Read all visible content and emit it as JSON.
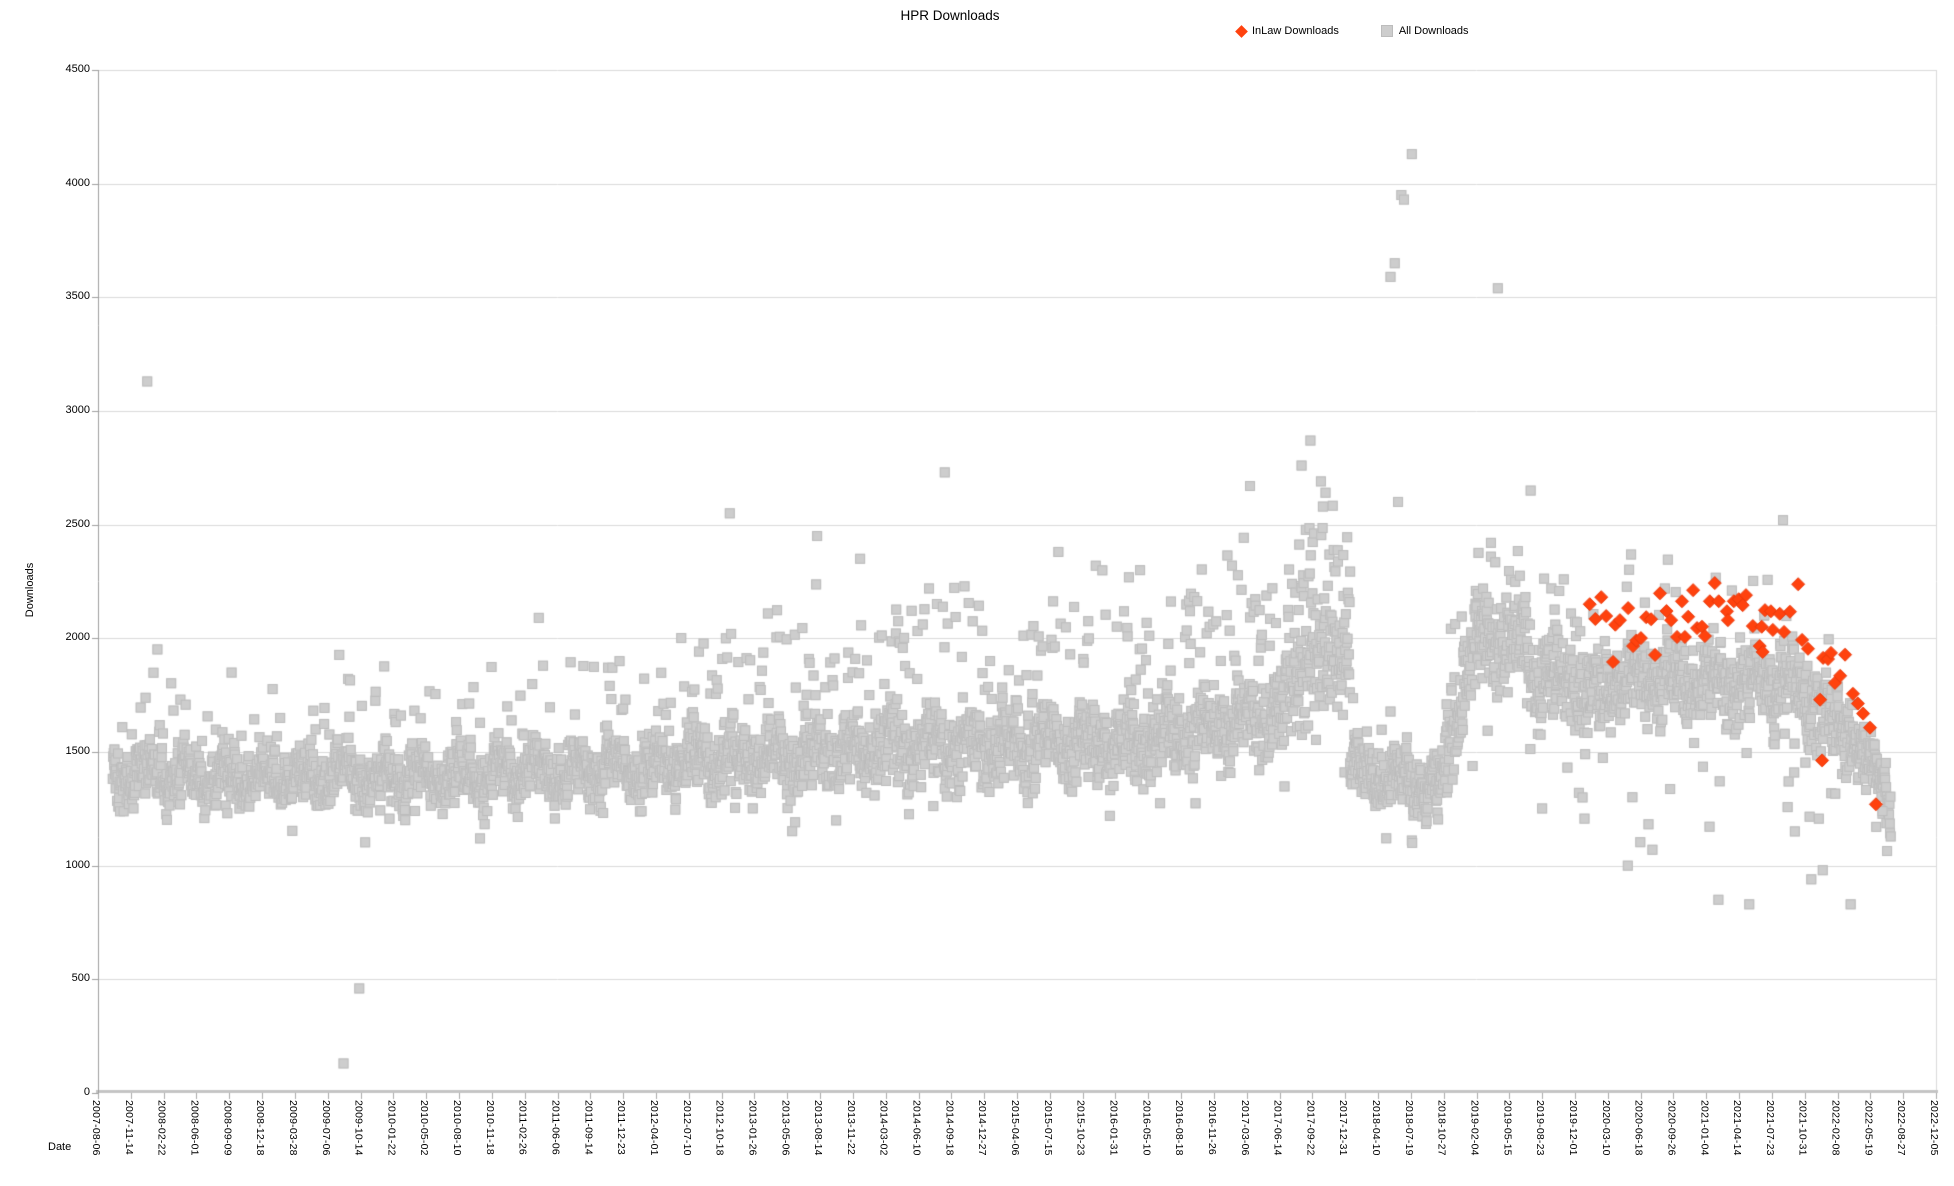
{
  "chart_data": {
    "type": "scatter",
    "title": "HPR Downloads",
    "xlabel": "Date",
    "ylabel": "Downloads",
    "ylim": [
      0,
      4500
    ],
    "yticks": [
      0,
      500,
      1000,
      1500,
      2000,
      2500,
      3000,
      3500,
      4000,
      4500
    ],
    "x_range": [
      "2007-08-06",
      "2022-12-05"
    ],
    "xticks": [
      "2007-08-06",
      "2007-11-14",
      "2008-02-22",
      "2008-06-01",
      "2008-09-09",
      "2008-12-18",
      "2009-03-28",
      "2009-07-06",
      "2009-10-14",
      "2010-01-22",
      "2010-05-02",
      "2010-08-10",
      "2010-11-18",
      "2011-02-26",
      "2011-06-06",
      "2011-09-14",
      "2011-12-23",
      "2012-04-01",
      "2012-07-10",
      "2012-10-18",
      "2013-01-26",
      "2013-05-06",
      "2013-08-14",
      "2013-11-22",
      "2014-03-02",
      "2014-06-10",
      "2014-09-18",
      "2014-12-27",
      "2015-04-06",
      "2015-07-15",
      "2015-10-23",
      "2016-01-31",
      "2016-05-10",
      "2016-08-18",
      "2016-11-26",
      "2017-03-06",
      "2017-06-14",
      "2017-09-22",
      "2017-12-31",
      "2018-04-10",
      "2018-07-19",
      "2018-10-27",
      "2019-02-04",
      "2019-05-15",
      "2019-08-23",
      "2019-12-01",
      "2020-03-10",
      "2020-06-18",
      "2020-09-26",
      "2021-01-04",
      "2021-04-14",
      "2021-07-23",
      "2021-10-31",
      "2022-02-08",
      "2022-05-19",
      "2022-08-27",
      "2022-12-05"
    ],
    "grid": true,
    "legend_position": "top-right",
    "seed": 1337,
    "colors": {
      "inlaw_fill": "#ff420e",
      "inlaw_stroke": "#e8380b",
      "all_fill": "#cdcdcd",
      "all_stroke": "#bcbcbc",
      "gridline": "#dadada",
      "axis_line": "#9e9e9e",
      "bottom_axis": "#c4c4c4",
      "tick_mark": "#a8a8a8"
    },
    "series": [
      {
        "name": "InLaw Downloads",
        "marker": "diamond",
        "points": [
          [
            "2020-01-15",
            2150
          ],
          [
            "2020-02-01",
            2085
          ],
          [
            "2020-02-19",
            2181
          ],
          [
            "2020-03-05",
            2098
          ],
          [
            "2020-03-26",
            1896
          ],
          [
            "2020-04-02",
            2060
          ],
          [
            "2020-04-16",
            2080
          ],
          [
            "2020-05-11",
            2133
          ],
          [
            "2020-05-26",
            1966
          ],
          [
            "2020-06-05",
            1990
          ],
          [
            "2020-06-19",
            2001
          ],
          [
            "2020-07-05",
            2093
          ],
          [
            "2020-07-20",
            2084
          ],
          [
            "2020-08-01",
            1927
          ],
          [
            "2020-08-16",
            2198
          ],
          [
            "2020-09-05",
            2120
          ],
          [
            "2020-09-19",
            2080
          ],
          [
            "2020-10-07",
            2006
          ],
          [
            "2020-10-22",
            2163
          ],
          [
            "2020-10-31",
            2006
          ],
          [
            "2020-11-10",
            2095
          ],
          [
            "2020-11-25",
            2212
          ],
          [
            "2020-12-07",
            2045
          ],
          [
            "2020-12-22",
            2051
          ],
          [
            "2020-12-31",
            2010
          ],
          [
            "2021-01-15",
            2163
          ],
          [
            "2021-01-30",
            2243
          ],
          [
            "2021-02-11",
            2163
          ],
          [
            "2021-03-08",
            2119
          ],
          [
            "2021-03-11",
            2080
          ],
          [
            "2021-03-29",
            2163
          ],
          [
            "2021-04-13",
            2172
          ],
          [
            "2021-04-25",
            2146
          ],
          [
            "2021-05-05",
            2190
          ],
          [
            "2021-05-26",
            2054
          ],
          [
            "2021-06-16",
            1966
          ],
          [
            "2021-06-22",
            2051
          ],
          [
            "2021-06-25",
            1940
          ],
          [
            "2021-07-02",
            2124
          ],
          [
            "2021-07-20",
            2119
          ],
          [
            "2021-07-26",
            2037
          ],
          [
            "2021-08-16",
            2108
          ],
          [
            "2021-08-29",
            2028
          ],
          [
            "2021-09-16",
            2117
          ],
          [
            "2021-10-11",
            2238
          ],
          [
            "2021-10-23",
            1993
          ],
          [
            "2021-11-10",
            1954
          ],
          [
            "2021-12-17",
            1730
          ],
          [
            "2021-12-23",
            1463
          ],
          [
            "2021-12-26",
            1914
          ],
          [
            "2022-01-10",
            1909
          ],
          [
            "2022-01-19",
            1936
          ],
          [
            "2022-01-31",
            1804
          ],
          [
            "2022-02-16",
            1835
          ],
          [
            "2022-03-03",
            1928
          ],
          [
            "2022-03-27",
            1756
          ],
          [
            "2022-04-11",
            1713
          ],
          [
            "2022-04-27",
            1669
          ],
          [
            "2022-05-18",
            1607
          ],
          [
            "2022-06-05",
            1270
          ]
        ]
      },
      {
        "name": "All Downloads",
        "marker": "square",
        "cloud_segments": [
          {
            "start": "2007-09-20",
            "end": "2008-03-01",
            "c0": 1400,
            "c1": 1420,
            "spread": 140,
            "hp": 0.05,
            "ha": 500,
            "lp": 0.01,
            "la": 150
          },
          {
            "start": "2008-03-01",
            "end": "2010-08-01",
            "c0": 1390,
            "c1": 1400,
            "spread": 130,
            "hp": 0.04,
            "ha": 450,
            "lp": 0.02,
            "la": 180
          },
          {
            "start": "2010-08-01",
            "end": "2012-06-01",
            "c0": 1410,
            "c1": 1440,
            "spread": 140,
            "hp": 0.05,
            "ha": 500,
            "lp": 0.02,
            "la": 200
          },
          {
            "start": "2012-06-01",
            "end": "2014-02-01",
            "c0": 1460,
            "c1": 1510,
            "spread": 160,
            "hp": 0.09,
            "ha": 600,
            "lp": 0.02,
            "la": 220
          },
          {
            "start": "2014-02-01",
            "end": "2016-09-01",
            "c0": 1520,
            "c1": 1560,
            "spread": 180,
            "hp": 0.11,
            "ha": 650,
            "lp": 0.02,
            "la": 250
          },
          {
            "start": "2016-09-01",
            "end": "2017-07-01",
            "c0": 1580,
            "c1": 1680,
            "spread": 200,
            "hp": 0.13,
            "ha": 700,
            "lp": 0.02,
            "la": 280
          },
          {
            "start": "2017-07-01",
            "end": "2018-01-15",
            "c0": 1800,
            "c1": 1950,
            "spread": 240,
            "hp": 0.2,
            "ha": 600,
            "lp": 0.03,
            "la": 400
          },
          {
            "start": "2018-01-15",
            "end": "2018-11-01",
            "c0": 1420,
            "c1": 1350,
            "spread": 140,
            "hp": 0.04,
            "ha": 400,
            "lp": 0.03,
            "la": 200
          },
          {
            "start": "2018-11-01",
            "end": "2019-02-01",
            "c0": 1500,
            "c1": 2000,
            "spread": 230,
            "hp": 0.08,
            "ha": 400,
            "lp": 0.05,
            "la": 350
          },
          {
            "start": "2019-02-01",
            "end": "2019-07-15",
            "c0": 2000,
            "c1": 1950,
            "spread": 220,
            "hp": 0.1,
            "ha": 400,
            "lp": 0.04,
            "la": 400
          },
          {
            "start": "2019-07-15",
            "end": "2020-03-01",
            "c0": 1850,
            "c1": 1750,
            "spread": 200,
            "hp": 0.06,
            "ha": 400,
            "lp": 0.05,
            "la": 550
          },
          {
            "start": "2020-03-01",
            "end": "2021-10-01",
            "c0": 1810,
            "c1": 1800,
            "spread": 185,
            "hp": 0.05,
            "ha": 420,
            "lp": 0.03,
            "la": 650
          },
          {
            "start": "2021-10-01",
            "end": "2022-04-15",
            "c0": 1760,
            "c1": 1560,
            "spread": 190,
            "hp": 0.03,
            "ha": 350,
            "lp": 0.04,
            "la": 700
          },
          {
            "start": "2022-04-15",
            "end": "2022-07-20",
            "c0": 1500,
            "c1": 1320,
            "spread": 150,
            "hp": 0.02,
            "ha": 250,
            "lp": 0.05,
            "la": 300
          }
        ],
        "outliers": [
          [
            "2008-01-03",
            3130
          ],
          [
            "2009-08-23",
            130
          ],
          [
            "2009-10-10",
            460
          ],
          [
            "2010-10-13",
            1120
          ],
          [
            "2011-04-10",
            2090
          ],
          [
            "2012-11-12",
            2550
          ],
          [
            "2013-08-05",
            2450
          ],
          [
            "2013-12-14",
            2350
          ],
          [
            "2014-08-29",
            2730
          ],
          [
            "2015-08-10",
            2380
          ],
          [
            "2016-04-15",
            2300
          ],
          [
            "2017-03-16",
            2670
          ],
          [
            "2017-08-20",
            2760
          ],
          [
            "2017-09-16",
            2870
          ],
          [
            "2018-05-18",
            3590
          ],
          [
            "2018-05-31",
            3650
          ],
          [
            "2018-06-10",
            2600
          ],
          [
            "2018-06-20",
            3950
          ],
          [
            "2018-06-28",
            3930
          ],
          [
            "2018-07-22",
            4130
          ],
          [
            "2019-03-20",
            2420
          ],
          [
            "2019-04-10",
            3540
          ],
          [
            "2019-07-19",
            2650
          ],
          [
            "2020-05-10",
            1000
          ],
          [
            "2020-07-24",
            1070
          ],
          [
            "2021-02-10",
            850
          ],
          [
            "2021-05-15",
            830
          ],
          [
            "2021-08-26",
            2520
          ],
          [
            "2021-12-25",
            980
          ],
          [
            "2022-03-20",
            830
          ],
          [
            "2022-06-25",
            1240
          ]
        ]
      }
    ]
  }
}
